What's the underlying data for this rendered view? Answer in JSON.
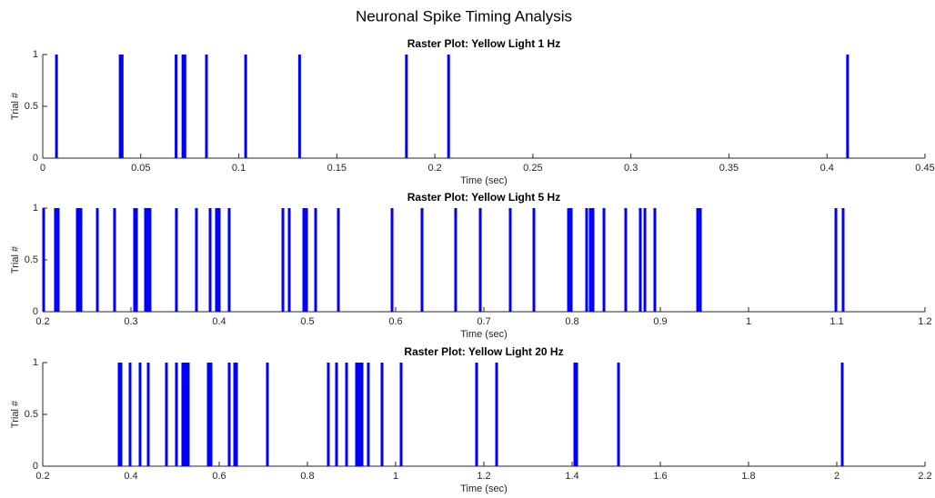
{
  "title": "Neuronal Spike Timing Analysis",
  "chart_data": [
    {
      "type": "raster",
      "title": "Raster Plot: Yellow Light 1 Hz",
      "x_label": "Time (sec)",
      "y_label": "Trial #",
      "color": "#0000ff",
      "x": [
        0.007,
        0.0395,
        0.0405,
        0.068,
        0.0715,
        0.0725,
        0.0835,
        0.1035,
        0.131,
        0.1855,
        0.207,
        0.4105
      ],
      "values": [
        1,
        1,
        1,
        1,
        1,
        1,
        1,
        1,
        1,
        1,
        1,
        1
      ],
      "xlim": [
        0,
        0.45
      ],
      "xticks": [
        0,
        0.05,
        0.1,
        0.15,
        0.2,
        0.25,
        0.3,
        0.35,
        0.4,
        0.45
      ],
      "ylim": [
        0,
        1
      ],
      "yticks": [
        0,
        0.5,
        1
      ]
    },
    {
      "type": "raster",
      "title": "Raster Plot: Yellow Light 5 Hz",
      "x_label": "Time (sec)",
      "y_label": "Trial #",
      "color": "#0000ff",
      "x": [
        0.201,
        0.2144,
        0.2175,
        0.2392,
        0.2412,
        0.2433,
        0.2619,
        0.2814,
        0.3041,
        0.3062,
        0.3165,
        0.3186,
        0.3216,
        0.3515,
        0.3742,
        0.3897,
        0.3969,
        0.4,
        0.4113,
        0.4722,
        0.4794,
        0.4959,
        0.499,
        0.5093,
        0.5351,
        0.5959,
        0.6299,
        0.668,
        0.6959,
        0.7299,
        0.7567,
        0.7959,
        0.799,
        0.8165,
        0.8206,
        0.8237,
        0.8361,
        0.8608,
        0.8773,
        0.8825,
        0.8938,
        0.9423,
        0.9454,
        1.099,
        1.1072
      ],
      "values": [
        1,
        1,
        1,
        1,
        1,
        1,
        1,
        1,
        1,
        1,
        1,
        1,
        1,
        1,
        1,
        1,
        1,
        1,
        1,
        1,
        1,
        1,
        1,
        1,
        1,
        1,
        1,
        1,
        1,
        1,
        1,
        1,
        1,
        1,
        1,
        1,
        1,
        1,
        1,
        1,
        1,
        1,
        1,
        1,
        1
      ],
      "xlim": [
        0.2,
        1.2
      ],
      "xticks": [
        0.2,
        0.3,
        0.4,
        0.5,
        0.6,
        0.7,
        0.8,
        0.9,
        1,
        1.1,
        1.2
      ],
      "ylim": [
        0,
        1
      ],
      "yticks": [
        0,
        0.5,
        1
      ]
    },
    {
      "type": "raster",
      "title": "Raster Plot: Yellow Light 20 Hz",
      "x_label": "Time (sec)",
      "y_label": "Trial #",
      "color": "#0000ff",
      "x": [
        0.3732,
        0.3773,
        0.3979,
        0.4206,
        0.4392,
        0.4804,
        0.5031,
        0.5175,
        0.5216,
        0.5258,
        0.5299,
        0.5753,
        0.5814,
        0.6227,
        0.6351,
        0.6392,
        0.7093,
        0.8474,
        0.866,
        0.8887,
        0.9113,
        0.9155,
        0.9196,
        0.9237,
        0.9381,
        0.9691,
        1.0124,
        1.1835,
        1.2289,
        1.4062,
        1.4103,
        1.5052,
        2.0124
      ],
      "values": [
        1,
        1,
        1,
        1,
        1,
        1,
        1,
        1,
        1,
        1,
        1,
        1,
        1,
        1,
        1,
        1,
        1,
        1,
        1,
        1,
        1,
        1,
        1,
        1,
        1,
        1,
        1,
        1,
        1,
        1,
        1,
        1,
        1
      ],
      "xlim": [
        0.2,
        2.2
      ],
      "xticks": [
        0.2,
        0.4,
        0.6,
        0.8,
        1,
        1.2,
        1.4,
        1.6,
        1.8,
        2,
        2.2
      ],
      "ylim": [
        0,
        1
      ],
      "yticks": [
        0,
        0.5,
        1
      ]
    }
  ]
}
